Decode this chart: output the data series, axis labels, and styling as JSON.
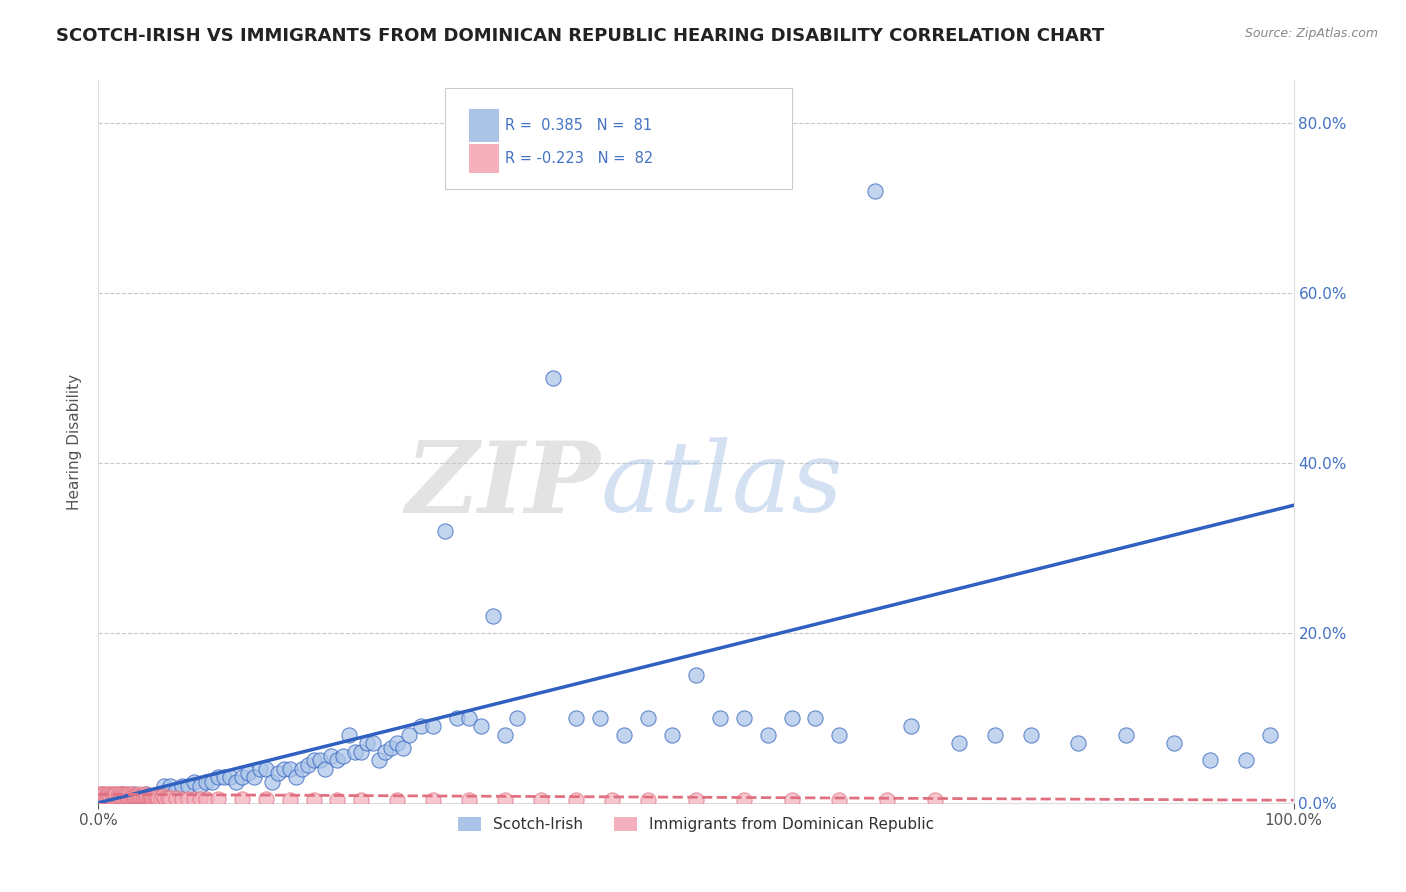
{
  "title": "SCOTCH-IRISH VS IMMIGRANTS FROM DOMINICAN REPUBLIC HEARING DISABILITY CORRELATION CHART",
  "source": "Source: ZipAtlas.com",
  "ylabel": "Hearing Disability",
  "xlabel": "",
  "xlim": [
    0.0,
    1.0
  ],
  "ylim": [
    0.0,
    0.85
  ],
  "right_ytick_values": [
    0.0,
    0.2,
    0.4,
    0.6,
    0.8
  ],
  "scotch_irish_R": 0.385,
  "scotch_irish_N": 81,
  "dominican_R": -0.223,
  "dominican_N": 82,
  "scotch_irish_color": "#aac4e8",
  "dominican_color": "#f4b0bc",
  "scotch_irish_line_color": "#3060c0",
  "dominican_line_color": "#e07080",
  "legend_scotch_label": "Scotch-Irish",
  "legend_dominican_label": "Immigrants from Dominican Republic",
  "watermark_zip": "ZIP",
  "watermark_atlas": "atlas",
  "background_color": "#ffffff",
  "title_color": "#222222",
  "title_fontsize": 13,
  "right_tick_color": "#4472c4",
  "grid_color": "#c8c8c8",
  "scotch_irish_x": [
    0.005,
    0.01,
    0.02,
    0.03,
    0.04,
    0.05,
    0.055,
    0.06,
    0.065,
    0.07,
    0.075,
    0.08,
    0.085,
    0.09,
    0.095,
    0.1,
    0.105,
    0.11,
    0.115,
    0.12,
    0.125,
    0.13,
    0.135,
    0.14,
    0.145,
    0.15,
    0.155,
    0.16,
    0.165,
    0.17,
    0.175,
    0.18,
    0.185,
    0.19,
    0.195,
    0.2,
    0.205,
    0.21,
    0.215,
    0.22,
    0.225,
    0.23,
    0.235,
    0.24,
    0.245,
    0.25,
    0.255,
    0.26,
    0.27,
    0.28,
    0.29,
    0.3,
    0.31,
    0.32,
    0.33,
    0.34,
    0.35,
    0.38,
    0.4,
    0.42,
    0.44,
    0.46,
    0.48,
    0.5,
    0.52,
    0.54,
    0.56,
    0.58,
    0.6,
    0.62,
    0.65,
    0.68,
    0.72,
    0.75,
    0.78,
    0.82,
    0.86,
    0.9,
    0.93,
    0.96,
    0.98
  ],
  "scotch_irish_y": [
    0.005,
    0.008,
    0.01,
    0.01,
    0.01,
    0.01,
    0.02,
    0.02,
    0.015,
    0.02,
    0.02,
    0.025,
    0.02,
    0.025,
    0.025,
    0.03,
    0.03,
    0.03,
    0.025,
    0.03,
    0.035,
    0.03,
    0.04,
    0.04,
    0.025,
    0.035,
    0.04,
    0.04,
    0.03,
    0.04,
    0.045,
    0.05,
    0.05,
    0.04,
    0.055,
    0.05,
    0.055,
    0.08,
    0.06,
    0.06,
    0.07,
    0.07,
    0.05,
    0.06,
    0.065,
    0.07,
    0.065,
    0.08,
    0.09,
    0.09,
    0.32,
    0.1,
    0.1,
    0.09,
    0.22,
    0.08,
    0.1,
    0.5,
    0.1,
    0.1,
    0.08,
    0.1,
    0.08,
    0.15,
    0.1,
    0.1,
    0.08,
    0.1,
    0.1,
    0.08,
    0.72,
    0.09,
    0.07,
    0.08,
    0.08,
    0.07,
    0.08,
    0.07,
    0.05,
    0.05,
    0.08
  ],
  "dominican_x": [
    0.001,
    0.002,
    0.003,
    0.004,
    0.005,
    0.006,
    0.007,
    0.008,
    0.009,
    0.01,
    0.011,
    0.012,
    0.013,
    0.014,
    0.015,
    0.016,
    0.017,
    0.018,
    0.019,
    0.02,
    0.021,
    0.022,
    0.023,
    0.024,
    0.025,
    0.026,
    0.027,
    0.028,
    0.029,
    0.03,
    0.031,
    0.032,
    0.033,
    0.034,
    0.035,
    0.036,
    0.037,
    0.038,
    0.039,
    0.04,
    0.041,
    0.042,
    0.043,
    0.044,
    0.045,
    0.046,
    0.047,
    0.048,
    0.049,
    0.05,
    0.052,
    0.054,
    0.056,
    0.058,
    0.06,
    0.065,
    0.07,
    0.075,
    0.08,
    0.085,
    0.09,
    0.1,
    0.12,
    0.14,
    0.16,
    0.18,
    0.2,
    0.22,
    0.25,
    0.28,
    0.31,
    0.34,
    0.37,
    0.4,
    0.43,
    0.46,
    0.5,
    0.54,
    0.58,
    0.62,
    0.66,
    0.7
  ],
  "dominican_y": [
    0.01,
    0.008,
    0.01,
    0.008,
    0.01,
    0.008,
    0.01,
    0.008,
    0.01,
    0.008,
    0.01,
    0.008,
    0.01,
    0.008,
    0.01,
    0.008,
    0.01,
    0.008,
    0.01,
    0.008,
    0.01,
    0.008,
    0.01,
    0.008,
    0.008,
    0.01,
    0.008,
    0.01,
    0.008,
    0.008,
    0.008,
    0.008,
    0.008,
    0.01,
    0.008,
    0.008,
    0.008,
    0.008,
    0.01,
    0.008,
    0.008,
    0.008,
    0.008,
    0.008,
    0.006,
    0.008,
    0.008,
    0.006,
    0.008,
    0.006,
    0.006,
    0.008,
    0.006,
    0.006,
    0.006,
    0.006,
    0.005,
    0.005,
    0.005,
    0.005,
    0.005,
    0.005,
    0.004,
    0.004,
    0.003,
    0.003,
    0.003,
    0.003,
    0.003,
    0.003,
    0.003,
    0.003,
    0.003,
    0.003,
    0.003,
    0.003,
    0.003,
    0.003,
    0.003,
    0.003,
    0.003,
    0.003
  ],
  "si_line_x0": 0.0,
  "si_line_y0": 0.0,
  "si_line_x1": 1.0,
  "si_line_y1": 0.35,
  "dom_line_x0": 0.0,
  "dom_line_y0": 0.01,
  "dom_line_x1": 1.0,
  "dom_line_y1": 0.003
}
